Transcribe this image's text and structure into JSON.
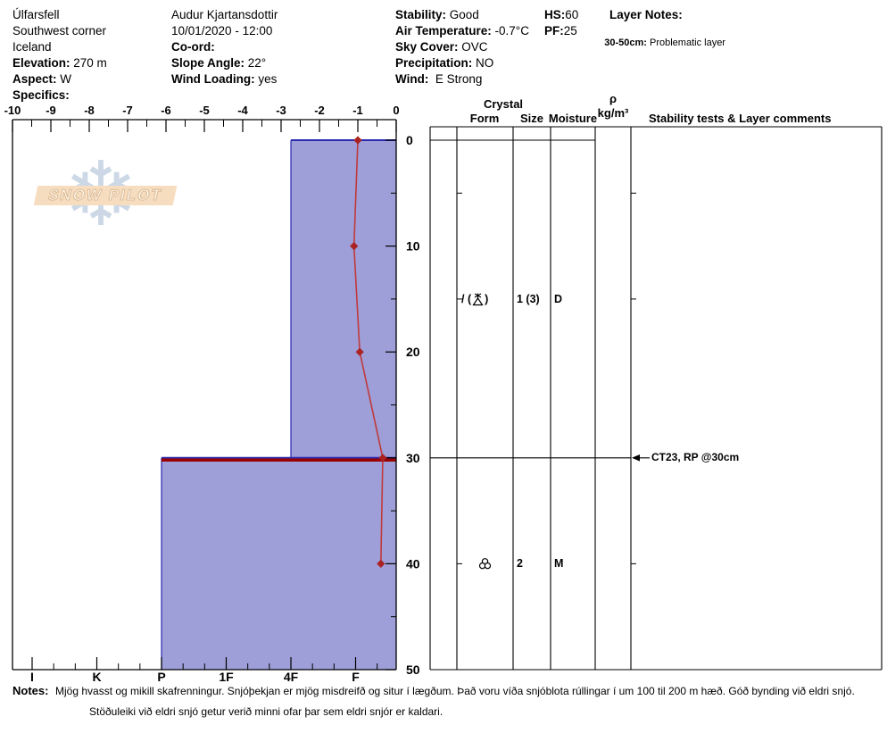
{
  "header": {
    "site": {
      "name": "Úlfarsfell",
      "area": "Southwest corner",
      "country": "Iceland",
      "elevation_label": "Elevation:",
      "elevation_value": " 270 m",
      "aspect_label": "Aspect:",
      "aspect_value": " W",
      "specifics_label": "Specifics:"
    },
    "obs": {
      "observer": "Audur Kjartansdottir",
      "datetime": "10/01/2020 - 12:00",
      "coord_label": "Co-ord:",
      "slope_label": "Slope Angle:",
      "slope_value": " 22°",
      "windload_label": "Wind Loading:",
      "windload_value": " yes"
    },
    "wx": {
      "stability_label": "Stability:",
      "stability_value": " Good",
      "airtemp_label": "Air Temperature:",
      "airtemp_value": " -0.7°C",
      "sky_label": "Sky Cover:",
      "sky_value": " OVC",
      "precip_label": "Precipitation:",
      "precip_value": " NO",
      "wind_label": "Wind:",
      "wind_value": "  E Strong"
    },
    "totals": {
      "hs_label": "HS:",
      "hs_value": "60",
      "pf_label": "PF:",
      "pf_value": "25"
    },
    "layer_notes": {
      "title": "Layer Notes:",
      "range": "30-50cm:",
      "text": " Problematic layer"
    }
  },
  "chart_data": {
    "type": "area",
    "description": "Snow pit profile: hand-hardness layers vs depth with snow temperature trace",
    "temp_axis": {
      "unit": "°C",
      "min": -10,
      "max": 0,
      "major_ticks": [
        -10,
        -9,
        -8,
        -7,
        -6,
        -5,
        -4,
        -3,
        -2,
        -1,
        0
      ],
      "minor_step": 0.5
    },
    "depth_axis": {
      "unit": "cm",
      "min": 0,
      "max": 50,
      "major_ticks": [
        0,
        10,
        20,
        30,
        40,
        50
      ],
      "minor_step": 5
    },
    "hardness_axis": {
      "labels": [
        "I",
        "K",
        "P",
        "1F",
        "4F",
        "F"
      ]
    },
    "temperature_profile": [
      {
        "depth_cm": 0,
        "temp_c": -1.0
      },
      {
        "depth_cm": 10,
        "temp_c": -1.1
      },
      {
        "depth_cm": 20,
        "temp_c": -0.95
      },
      {
        "depth_cm": 30,
        "temp_c": -0.35
      },
      {
        "depth_cm": 40,
        "temp_c": -0.4
      }
    ],
    "layers": [
      {
        "top_cm": 0,
        "bottom_cm": 30,
        "hardness": "4F",
        "problematic": false
      },
      {
        "top_cm": 30,
        "bottom_cm": 50,
        "hardness": "P",
        "problematic": true
      }
    ],
    "colors": {
      "layer_fill": "#9e9ed8",
      "layer_border": "#2a2ab0",
      "problematic_line": "#990000",
      "temp_line": "#c03a3a",
      "temp_marker": "#aa2222"
    }
  },
  "table": {
    "header": {
      "crystal": "Crystal",
      "form": "Form",
      "size": "Size",
      "moisture": "Moisture",
      "rho": "ρ",
      "rho_unit": "kg/m³",
      "comments": "Stability tests & Layer comments"
    },
    "rows": [
      {
        "layer_mid_cm": 15,
        "form_prefix": "/ (",
        "form_symbol": "precipitation-particles-broken",
        "form_suffix": ")",
        "size": "1 (3)",
        "moisture": "D"
      },
      {
        "layer_mid_cm": 40,
        "form_symbol": "melt-forms-clustered",
        "size": "2",
        "moisture": "M"
      }
    ],
    "edge_tick_depths": [
      5,
      15,
      40
    ],
    "annotations": [
      {
        "depth_cm": 30,
        "text": "CT23, RP @30cm"
      }
    ]
  },
  "logo": {
    "text": "SNOW PILOT"
  },
  "notes": {
    "label": "Notes:",
    "line1": "Mjög hvasst og mikill skafrenningur. Snjóþekjan er mjög misdreifð og situr í lægðum. Það voru víða snjóblota rúllingar í um 100 til 200 m hæð.  Góð bynding við eldri snjó.",
    "line2": "Stöðuleiki við eldri snjó getur verið minni ofar þar sem eldri snjór er kaldari."
  }
}
